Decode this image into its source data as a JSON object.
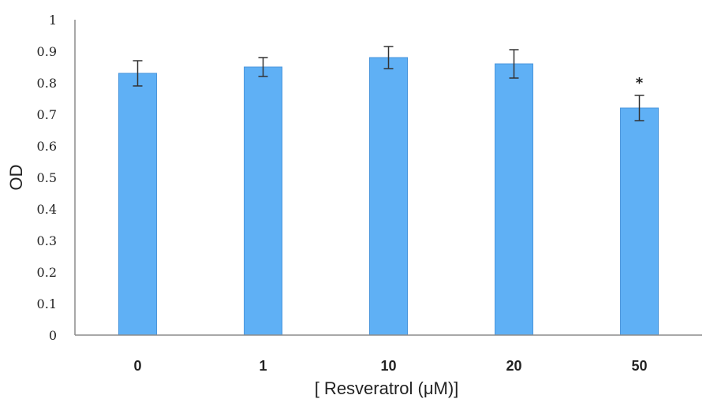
{
  "chart_data": {
    "type": "bar",
    "title": "",
    "xlabel": "[ Resveratrol (μM)]",
    "ylabel": "OD",
    "categories": [
      "0",
      "1",
      "10",
      "20",
      "50"
    ],
    "values": [
      0.83,
      0.85,
      0.88,
      0.86,
      0.72
    ],
    "error": [
      0.04,
      0.03,
      0.035,
      0.045,
      0.04
    ],
    "annotations": [
      "",
      "",
      "",
      "",
      "*"
    ],
    "ylim": [
      0,
      1
    ],
    "yticks": [
      "0",
      "0.1",
      "0.2",
      "0.3",
      "0.4",
      "0.5",
      "0.6",
      "0.7",
      "0.8",
      "0.9",
      "1"
    ],
    "grid": false,
    "legend": "none",
    "colors": {
      "bar": "#5fb0f5",
      "bar_edge": "#4a96dc",
      "error_bar": "#333333",
      "axis": "#8c8c8c"
    }
  }
}
